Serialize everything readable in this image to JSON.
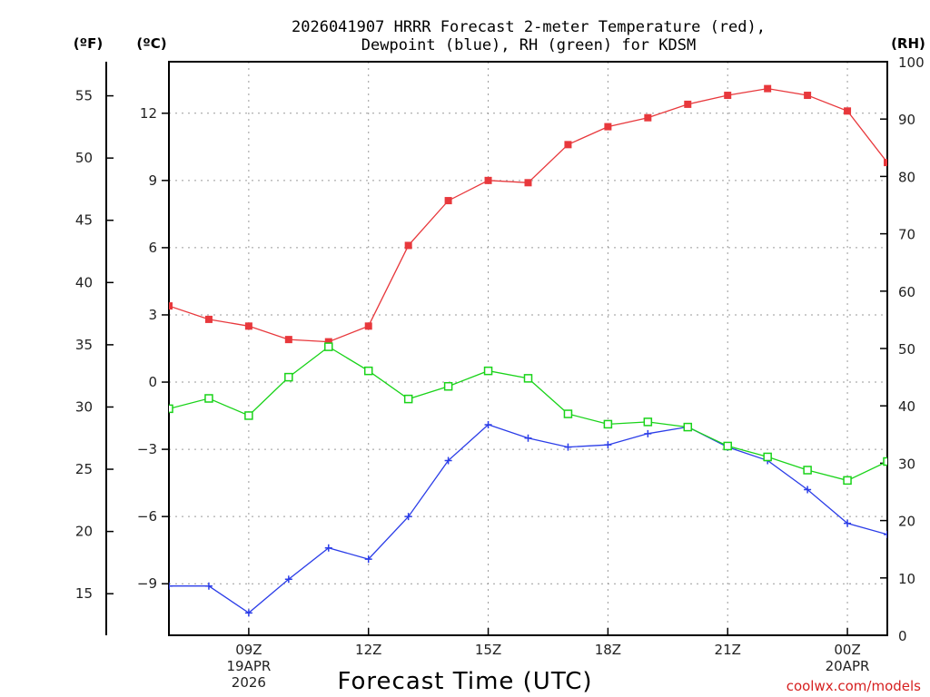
{
  "chart_data": {
    "type": "line",
    "title_line1": "2026041907 HRRR Forecast 2-meter Temperature (red),",
    "title_line2": "Dewpoint (blue), RH (green) for KDSM",
    "unit_f": "(ºF)",
    "unit_c": "(ºC)",
    "unit_rh": "(RH)",
    "xlabel": "Forecast Time (UTC)",
    "credit": "coolwx.com/models",
    "x_hours": [
      7,
      8,
      9,
      10,
      11,
      12,
      13,
      14,
      15,
      16,
      17,
      18,
      19,
      20,
      21,
      22,
      23,
      24,
      25
    ],
    "xlim": [
      7,
      25
    ],
    "x_ticks": [
      {
        "h": 9,
        "lines": [
          "09Z",
          "19APR",
          "2026"
        ]
      },
      {
        "h": 12,
        "lines": [
          "12Z"
        ]
      },
      {
        "h": 15,
        "lines": [
          "15Z"
        ]
      },
      {
        "h": 18,
        "lines": [
          "18Z"
        ]
      },
      {
        "h": 21,
        "lines": [
          "21Z"
        ]
      },
      {
        "h": 24,
        "lines": [
          "00Z",
          "20APR"
        ]
      }
    ],
    "c_axis": {
      "ylim": [
        -11.3,
        14.3
      ],
      "ticks": [
        -9,
        -6,
        -3,
        0,
        3,
        6,
        9,
        12
      ]
    },
    "f_axis": {
      "ticks": [
        15,
        20,
        25,
        30,
        35,
        40,
        45,
        50,
        55
      ]
    },
    "rh_axis": {
      "ylim": [
        0,
        100
      ],
      "ticks": [
        0,
        10,
        20,
        30,
        40,
        50,
        60,
        70,
        80,
        90,
        100
      ]
    },
    "series": [
      {
        "name": "Temperature (red)",
        "axis": "c",
        "color": "#e8383c",
        "marker": "filled-square",
        "values": [
          3.4,
          2.8,
          2.5,
          1.9,
          1.8,
          2.5,
          6.1,
          8.1,
          9.0,
          8.9,
          10.6,
          11.4,
          11.8,
          12.4,
          12.8,
          13.1,
          12.8,
          12.1,
          9.8
        ]
      },
      {
        "name": "Dewpoint (blue)",
        "axis": "c",
        "color": "#2b3de8",
        "marker": "plus",
        "values": [
          -9.1,
          -9.1,
          -10.3,
          -8.8,
          -7.4,
          -7.9,
          -6.0,
          -3.5,
          -1.9,
          -2.5,
          -2.9,
          -2.8,
          -2.3,
          -2.0,
          -2.9,
          -3.5,
          -4.8,
          -6.3,
          -6.8
        ]
      },
      {
        "name": "RH (green)",
        "axis": "rh",
        "color": "#19d319",
        "marker": "open-square",
        "values": [
          39.5,
          41.3,
          38.3,
          45.0,
          50.3,
          46.1,
          41.2,
          43.4,
          46.1,
          44.8,
          38.6,
          36.8,
          37.2,
          36.3,
          33.0,
          31.1,
          28.8,
          27.0,
          30.3
        ]
      }
    ]
  }
}
